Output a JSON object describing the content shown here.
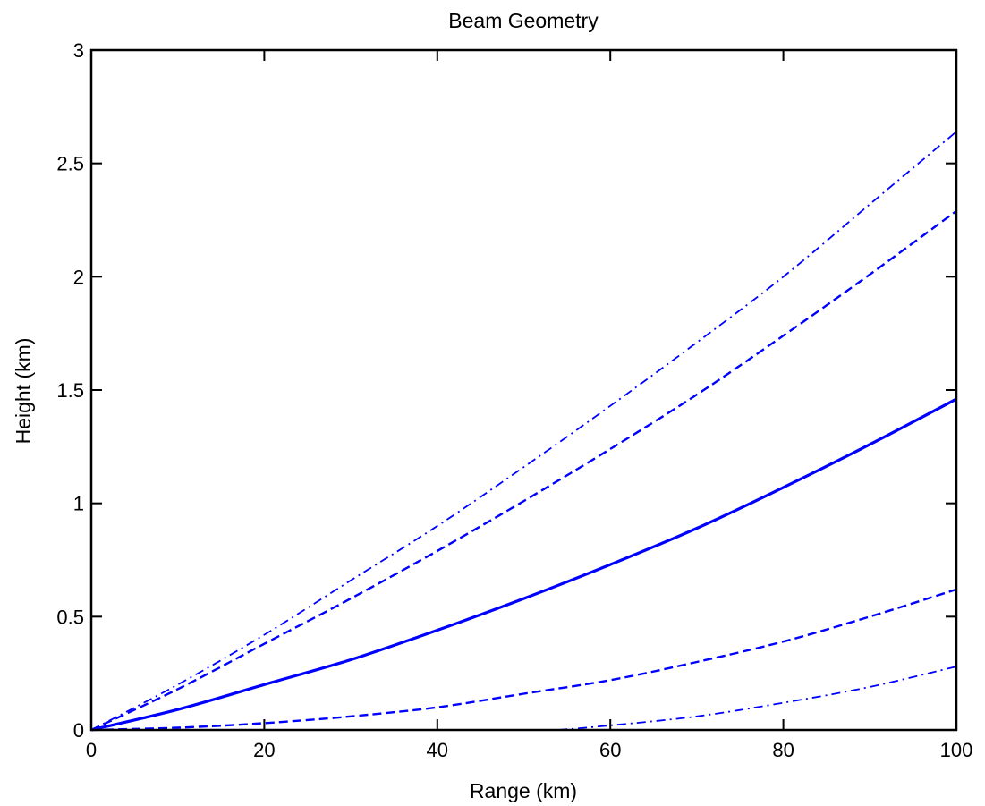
{
  "chart_data": {
    "type": "line",
    "title": "Beam Geometry",
    "xlabel": "Range (km)",
    "ylabel": "Height (km)",
    "xlim": [
      0,
      100
    ],
    "ylim": [
      0,
      3
    ],
    "xticks": [
      0,
      20,
      40,
      60,
      80,
      100
    ],
    "yticks": [
      0,
      0.5,
      1,
      1.5,
      2,
      2.5,
      3
    ],
    "xtick_labels": [
      "0",
      "20",
      "40",
      "60",
      "80",
      "100"
    ],
    "ytick_labels": [
      "0",
      "0.5",
      "1",
      "1.5",
      "2",
      "2.5",
      "3"
    ],
    "grid": false,
    "x": [
      0,
      10,
      20,
      30,
      40,
      50,
      60,
      70,
      80,
      90,
      100
    ],
    "series": [
      {
        "style": "dashdot",
        "color": "#0000ff",
        "values": [
          0,
          0.2,
          0.42,
          0.66,
          0.9,
          1.16,
          1.43,
          1.71,
          2.0,
          2.32,
          2.64
        ]
      },
      {
        "style": "dashed",
        "color": "#0000ff",
        "values": [
          0,
          0.18,
          0.38,
          0.58,
          0.79,
          1.01,
          1.24,
          1.48,
          1.74,
          2.01,
          2.29
        ]
      },
      {
        "style": "solid",
        "color": "#0000ff",
        "values": [
          0,
          0.09,
          0.2,
          0.31,
          0.44,
          0.58,
          0.73,
          0.89,
          1.07,
          1.26,
          1.46
        ]
      },
      {
        "style": "dashed",
        "color": "#0000ff",
        "values": [
          0,
          0.01,
          0.03,
          0.06,
          0.1,
          0.16,
          0.22,
          0.3,
          0.39,
          0.5,
          0.62
        ]
      },
      {
        "style": "dashdot",
        "color": "#0000ff",
        "x": [
          54,
          60,
          70,
          80,
          90,
          100
        ],
        "values": [
          0,
          0.02,
          0.06,
          0.12,
          0.19,
          0.28
        ]
      }
    ]
  }
}
